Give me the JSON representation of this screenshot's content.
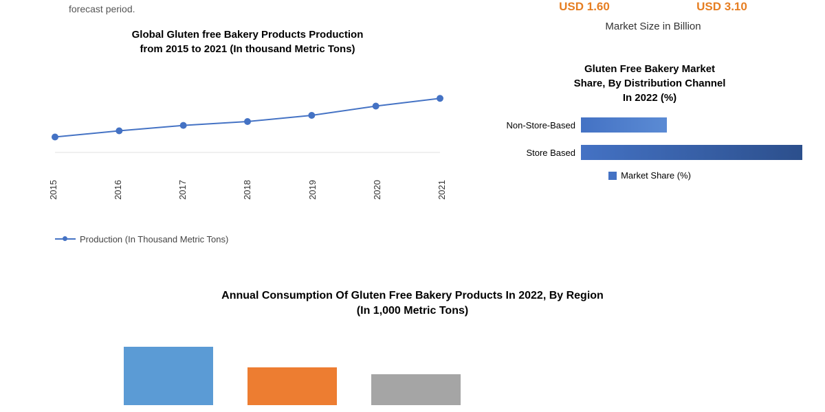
{
  "topText": "forecast period.",
  "marketSize": {
    "label": "Market Size in Billion",
    "values": [
      {
        "text": "USD 1.60",
        "color": "#e67e22"
      },
      {
        "text": "USD 3.10",
        "color": "#e67e22"
      }
    ]
  },
  "lineChart": {
    "title": "Global Gluten free Bakery Products Production\nfrom 2015 to 2021 (In thousand Metric Tons)",
    "legend": "Production (In Thousand Metric Tons)",
    "lineColor": "#4472c4",
    "markerColor": "#4472c4",
    "markerSize": 5,
    "lineWidth": 2,
    "gridColor": "#e0e0e0",
    "xLabels": [
      "2015",
      "2016",
      "2017",
      "2018",
      "2019",
      "2020",
      "2021"
    ],
    "yValues": [
      100,
      108,
      115,
      120,
      128,
      140,
      150
    ],
    "ylim": [
      80,
      160
    ]
  },
  "hbarChart": {
    "title": "Gluten Free Bakery Market\nShare, By Distribution Channel\nIn 2022 (%)",
    "legend": "Market Share (%)",
    "legendColor": "#4472c4",
    "bars": [
      {
        "label": "Non-Store-Based",
        "value": 28,
        "color": "#4472c4",
        "gradient": "#5b8bd4"
      },
      {
        "label": "Store Based",
        "value": 72,
        "color": "#4472c4",
        "gradient": "#2c4f8c"
      }
    ],
    "xmax": 75
  },
  "bottomTitle": "Annual Consumption Of Gluten Free Bakery Products In 2022, By Region\n(In 1,000 Metric Tons)",
  "vbarChart": {
    "bars": [
      {
        "value": 85,
        "color": "#5b9bd5"
      },
      {
        "value": 55,
        "color": "#ed7d31"
      },
      {
        "value": 45,
        "color": "#a5a5a5"
      }
    ],
    "ymax": 100
  }
}
